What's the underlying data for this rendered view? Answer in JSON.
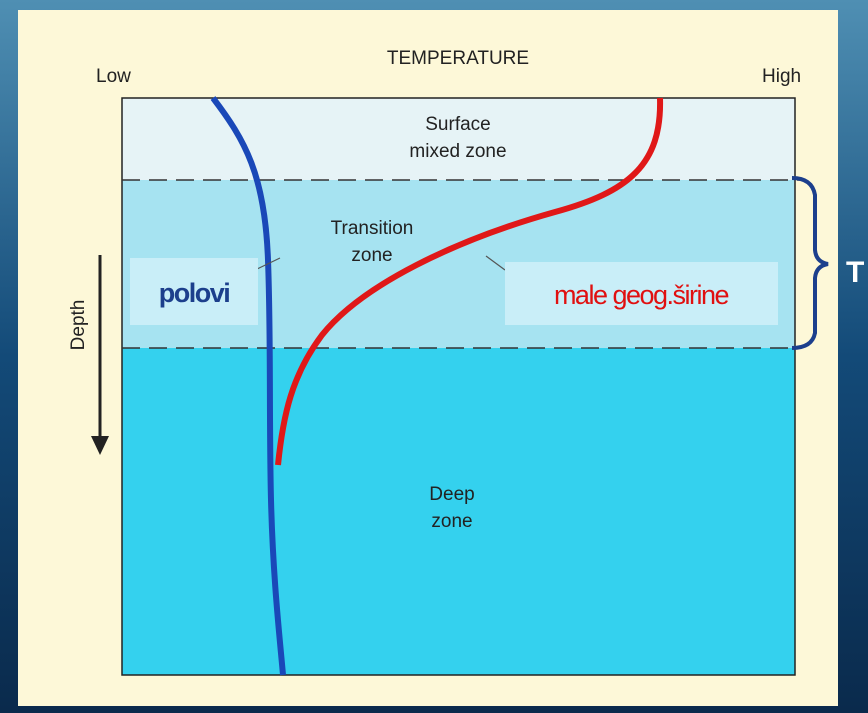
{
  "title": "TEMPERATURE",
  "axis": {
    "low": "Low",
    "high": "High",
    "depth": "Depth"
  },
  "zones": {
    "surface": [
      "Surface",
      "mixed zone"
    ],
    "transition": [
      "Transition",
      "zone"
    ],
    "deep": [
      "Deep",
      "zone"
    ]
  },
  "labels": {
    "poles": "polovi",
    "low_latitudes": "male geog.širine",
    "bracket": "T"
  }
}
